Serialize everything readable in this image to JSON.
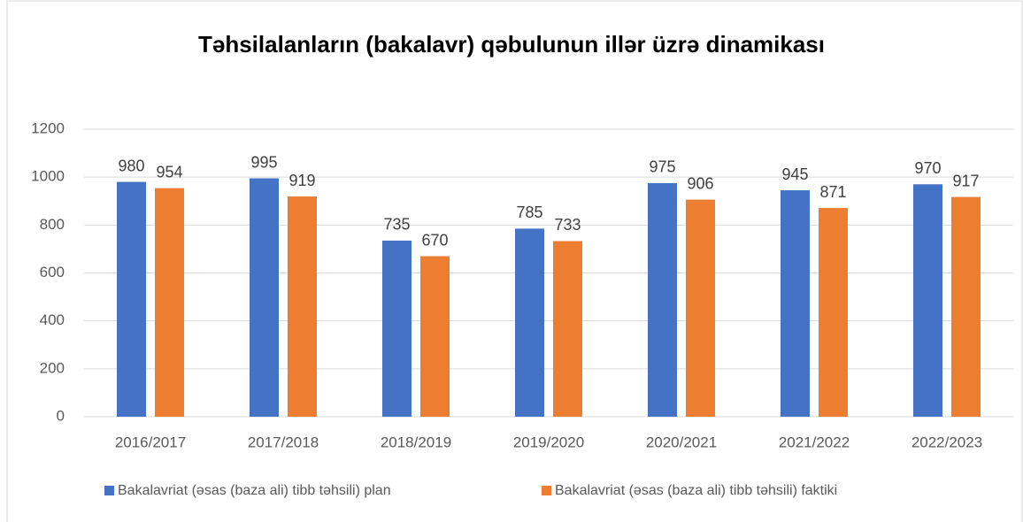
{
  "chart_data": {
    "type": "bar",
    "title": "Təhsilalanların (bakalavr) qəbulunun illər üzrə dinamikası",
    "categories": [
      "2016/2017",
      "2017/2018",
      "2018/2019",
      "2019/2020",
      "2020/2021",
      "2021/2022",
      "2022/2023"
    ],
    "series": [
      {
        "name": "Bakalavriat (əsas (baza ali) tibb təhsili) plan",
        "color": "#4472c4",
        "values": [
          980,
          995,
          735,
          785,
          975,
          945,
          970
        ]
      },
      {
        "name": "Bakalavriat (əsas (baza ali) tibb təhsili) faktiki",
        "color": "#ed7d31",
        "values": [
          954,
          919,
          670,
          733,
          906,
          871,
          917
        ]
      }
    ],
    "ylim": [
      0,
      1200
    ],
    "yticks": [
      0,
      200,
      400,
      600,
      800,
      1000,
      1200
    ],
    "grid": true,
    "legend": "bottom"
  }
}
